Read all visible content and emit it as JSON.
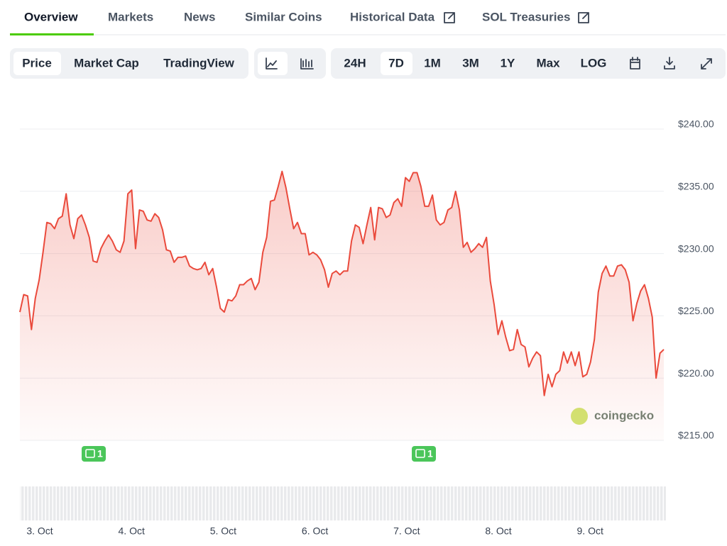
{
  "tabs": [
    "Overview",
    "Markets",
    "News",
    "Similar Coins",
    "Historical Data",
    "SOL Treasuries"
  ],
  "chart_types": [
    "Price",
    "Market Cap",
    "TradingView"
  ],
  "ranges": [
    "24H",
    "7D",
    "1M",
    "3M",
    "1Y",
    "Max",
    "LOG"
  ],
  "chart_data": {
    "type": "line",
    "color": "#ea4a3c",
    "values": [
      225.3,
      226.7,
      226.6,
      223.9,
      226.4,
      227.9,
      230.1,
      232.5,
      232.4,
      232.0,
      232.8,
      233.0,
      234.8,
      232.3,
      231.2,
      232.8,
      233.1,
      232.3,
      231.3,
      229.4,
      229.3,
      230.4,
      231.0,
      231.5,
      231.0,
      230.3,
      230.1,
      231.0,
      234.8,
      235.1,
      230.4,
      233.5,
      233.4,
      232.7,
      232.6,
      233.2,
      232.9,
      231.9,
      230.3,
      230.2,
      229.3,
      229.7,
      229.7,
      229.8,
      229.0,
      228.8,
      228.7,
      228.8,
      229.3,
      228.3,
      228.8,
      227.3,
      225.6,
      225.3,
      226.3,
      226.2,
      226.6,
      227.5,
      227.5,
      227.8,
      228.0,
      227.1,
      227.7,
      230.1,
      231.3,
      234.2,
      234.3,
      235.4,
      236.6,
      235.3,
      233.6,
      232.0,
      232.5,
      231.6,
      231.6,
      229.9,
      230.1,
      229.9,
      229.5,
      228.7,
      227.3,
      228.4,
      228.6,
      228.3,
      228.6,
      228.6,
      231.0,
      232.3,
      232.1,
      230.8,
      232.3,
      233.7,
      231.1,
      233.7,
      233.6,
      232.9,
      233.1,
      234.1,
      234.4,
      233.8,
      236.1,
      235.8,
      236.5,
      236.5,
      235.4,
      233.8,
      233.8,
      234.7,
      232.7,
      232.3,
      232.5,
      233.5,
      233.7,
      235.0,
      233.5,
      230.5,
      230.9,
      230.1,
      230.4,
      230.8,
      230.5,
      231.3,
      227.8,
      225.9,
      223.5,
      224.6,
      223.3,
      222.2,
      222.3,
      223.9,
      222.7,
      222.5,
      220.9,
      221.6,
      222.1,
      221.8,
      218.6,
      220.3,
      219.3,
      220.3,
      220.6,
      222.1,
      221.2,
      222.1,
      221.0,
      222.1,
      220.1,
      220.3,
      221.3,
      223.1,
      226.9,
      228.4,
      229.0,
      228.2,
      228.2,
      229.0,
      229.1,
      228.7,
      227.7,
      224.6,
      226.0,
      227.0,
      227.5,
      226.4,
      224.9,
      220.0,
      222.0,
      222.3
    ],
    "xtick_labels": [
      "3. Oct",
      "4. Oct",
      "5. Oct",
      "6. Oct",
      "7. Oct",
      "8. Oct",
      "9. Oct"
    ],
    "ylim": [
      215,
      242
    ],
    "yticks": [
      {
        "value": 215,
        "label": "$215.00"
      },
      {
        "value": 220,
        "label": "$220.00"
      },
      {
        "value": 225,
        "label": "$225.00"
      },
      {
        "value": 230,
        "label": "$230.00"
      },
      {
        "value": 235,
        "label": "$235.00"
      },
      {
        "value": 240,
        "label": "$240.00"
      }
    ],
    "grid": true,
    "news_markers": [
      "1",
      "1"
    ],
    "watermark": "coingecko"
  }
}
